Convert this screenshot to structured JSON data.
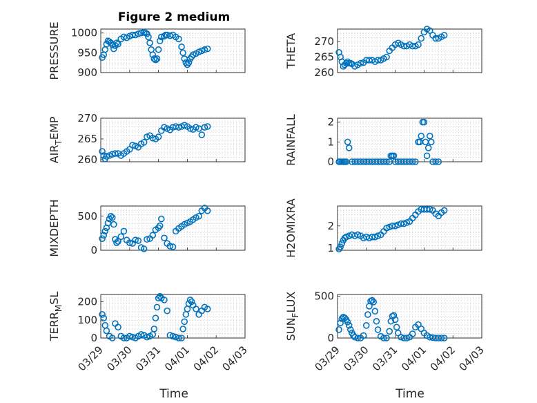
{
  "title": "Figure 2 medium",
  "x_label": "Time",
  "x_ticks": [
    "03/29",
    "03/30",
    "03/31",
    "04/01",
    "04/02",
    "04/03"
  ],
  "marker_color": "#0072BD",
  "chart_data": [
    {
      "type": "scatter",
      "ylabel": "PRESSURE",
      "yticks": [
        "900",
        "950",
        "1000"
      ],
      "ylim": [
        900,
        1010
      ],
      "xlim": [
        0,
        5
      ],
      "grid": true,
      "x": [
        0.05,
        0.1,
        0.15,
        0.2,
        0.25,
        0.3,
        0.35,
        0.4,
        0.45,
        0.5,
        0.55,
        0.6,
        0.7,
        0.8,
        0.9,
        1.0,
        1.1,
        1.2,
        1.3,
        1.4,
        1.5,
        1.55,
        1.6,
        1.65,
        1.7,
        1.75,
        1.8,
        1.85,
        1.9,
        1.95,
        2.0,
        2.05,
        2.1,
        2.2,
        2.25,
        2.3,
        2.4,
        2.5,
        2.6,
        2.7,
        2.8,
        2.85,
        2.9,
        2.95,
        3.0,
        3.05,
        3.1,
        3.15,
        3.2,
        3.3,
        3.4,
        3.5,
        3.6,
        3.7
      ],
      "y": [
        938,
        945,
        958,
        972,
        980,
        978,
        975,
        970,
        960,
        968,
        975,
        972,
        985,
        990,
        988,
        992,
        995,
        995,
        998,
        1000,
        1002,
        1000,
        998,
        990,
        975,
        958,
        945,
        935,
        932,
        935,
        958,
        980,
        990,
        992,
        995,
        995,
        993,
        995,
        990,
        985,
        965,
        950,
        935,
        925,
        920,
        925,
        935,
        940,
        945,
        948,
        952,
        955,
        958,
        960
      ]
    },
    {
      "type": "scatter",
      "ylabel": "THETA",
      "yticks": [
        "260",
        "265",
        "270"
      ],
      "ylim": [
        260,
        274
      ],
      "xlim": [
        0,
        5
      ],
      "grid": true,
      "x": [
        0.05,
        0.1,
        0.15,
        0.2,
        0.25,
        0.3,
        0.35,
        0.4,
        0.45,
        0.5,
        0.6,
        0.7,
        0.8,
        0.9,
        1.0,
        1.1,
        1.2,
        1.3,
        1.4,
        1.5,
        1.6,
        1.7,
        1.8,
        1.9,
        2.0,
        2.1,
        2.2,
        2.3,
        2.4,
        2.5,
        2.6,
        2.7,
        2.8,
        2.9,
        3.0,
        3.1,
        3.2,
        3.3,
        3.4,
        3.5,
        3.6,
        3.7
      ],
      "y": [
        266.5,
        265,
        263.5,
        262,
        262.5,
        263,
        263.5,
        263,
        263,
        262.8,
        262,
        262.5,
        263,
        263.2,
        264,
        264,
        264,
        263.5,
        264,
        264,
        264.5,
        265,
        267,
        268,
        269,
        269.5,
        269,
        268.5,
        268.5,
        269,
        268.5,
        268.5,
        269,
        271,
        273,
        274,
        273.5,
        272,
        271,
        271,
        271.5,
        272
      ]
    },
    {
      "type": "scatter",
      "ylabel": "AIR_TEMP",
      "yticks": [
        "260",
        "265",
        "270"
      ],
      "ylim": [
        259.5,
        270
      ],
      "xlim": [
        0,
        5
      ],
      "grid": true,
      "x": [
        0.05,
        0.1,
        0.15,
        0.2,
        0.3,
        0.4,
        0.5,
        0.6,
        0.7,
        0.8,
        0.9,
        1.0,
        1.1,
        1.2,
        1.3,
        1.4,
        1.5,
        1.6,
        1.7,
        1.8,
        1.9,
        2.0,
        2.1,
        2.2,
        2.3,
        2.4,
        2.5,
        2.6,
        2.7,
        2.8,
        2.9,
        3.0,
        3.1,
        3.2,
        3.3,
        3.4,
        3.5,
        3.6,
        3.7
      ],
      "y": [
        262,
        261,
        260.2,
        260.8,
        261,
        261.3,
        261.5,
        261.5,
        261,
        261.5,
        262,
        262.5,
        263.5,
        263.3,
        263,
        263.8,
        264.2,
        265.5,
        265.8,
        265.2,
        265,
        265.5,
        267,
        267.8,
        267.5,
        267.2,
        267.8,
        268,
        267.8,
        268,
        268.3,
        268,
        267.5,
        267.3,
        267.8,
        267.5,
        266,
        267.8,
        268
      ]
    },
    {
      "type": "scatter",
      "ylabel": "RAINFALL",
      "yticks": [
        "0",
        "1",
        "2"
      ],
      "ylim": [
        0,
        2.2
      ],
      "xlim": [
        0,
        5
      ],
      "grid": true,
      "x": [
        0.05,
        0.1,
        0.15,
        0.2,
        0.25,
        0.3,
        0.35,
        0.4,
        0.5,
        0.6,
        0.7,
        0.8,
        0.9,
        1.0,
        1.1,
        1.2,
        1.3,
        1.4,
        1.5,
        1.6,
        1.7,
        1.8,
        1.85,
        1.9,
        1.95,
        2.0,
        2.1,
        2.2,
        2.3,
        2.4,
        2.5,
        2.6,
        2.7,
        2.8,
        2.85,
        2.9,
        2.95,
        3.0,
        3.05,
        3.1,
        3.15,
        3.2,
        3.25,
        3.3,
        3.4,
        3.5
      ],
      "y": [
        0,
        0,
        0,
        0,
        0,
        0,
        1,
        0.7,
        0,
        0,
        0,
        0,
        0,
        0,
        0,
        0,
        0,
        0,
        0,
        0,
        0,
        0,
        0.3,
        0.3,
        0.3,
        0,
        0,
        0,
        0,
        0,
        0,
        0,
        0,
        1,
        1,
        1.3,
        2,
        2,
        1,
        0.3,
        0.7,
        1.3,
        1,
        0,
        0,
        0
      ]
    },
    {
      "type": "scatter",
      "ylabel": "MIXDEPTH",
      "yticks": [
        "0",
        "500"
      ],
      "ylim": [
        0,
        650
      ],
      "xlim": [
        0,
        5
      ],
      "grid": true,
      "x": [
        0.05,
        0.1,
        0.15,
        0.2,
        0.25,
        0.3,
        0.35,
        0.4,
        0.45,
        0.5,
        0.55,
        0.6,
        0.7,
        0.8,
        0.9,
        1.0,
        1.1,
        1.2,
        1.3,
        1.4,
        1.5,
        1.6,
        1.7,
        1.8,
        1.9,
        2.0,
        2.05,
        2.1,
        2.2,
        2.3,
        2.4,
        2.5,
        2.6,
        2.7,
        2.8,
        2.9,
        3.0,
        3.1,
        3.2,
        3.3,
        3.4,
        3.5,
        3.6,
        3.7
      ],
      "y": [
        170,
        220,
        280,
        330,
        400,
        460,
        500,
        480,
        380,
        160,
        110,
        130,
        200,
        280,
        150,
        110,
        100,
        150,
        140,
        40,
        20,
        160,
        170,
        220,
        300,
        330,
        360,
        460,
        180,
        100,
        60,
        50,
        280,
        320,
        350,
        380,
        400,
        420,
        450,
        480,
        500,
        580,
        620,
        580
      ]
    },
    {
      "type": "scatter",
      "ylabel": "H2OMIXRA",
      "yticks": [
        "1",
        "2"
      ],
      "ylim": [
        0.9,
        2.9
      ],
      "xlim": [
        0,
        5
      ],
      "grid": true,
      "x": [
        0.05,
        0.1,
        0.15,
        0.2,
        0.25,
        0.3,
        0.4,
        0.5,
        0.6,
        0.7,
        0.8,
        0.9,
        1.0,
        1.1,
        1.2,
        1.3,
        1.4,
        1.5,
        1.6,
        1.7,
        1.8,
        1.9,
        2.0,
        2.1,
        2.2,
        2.3,
        2.4,
        2.5,
        2.6,
        2.7,
        2.8,
        2.9,
        3.0,
        3.1,
        3.2,
        3.3,
        3.4,
        3.5,
        3.6,
        3.7
      ],
      "y": [
        0.95,
        1.05,
        1.2,
        1.35,
        1.45,
        1.5,
        1.55,
        1.6,
        1.55,
        1.6,
        1.55,
        1.45,
        1.5,
        1.45,
        1.5,
        1.5,
        1.55,
        1.6,
        1.75,
        1.9,
        1.95,
        2.0,
        2.0,
        2.05,
        2.1,
        2.1,
        2.15,
        2.2,
        2.35,
        2.5,
        2.65,
        2.75,
        2.75,
        2.75,
        2.75,
        2.7,
        2.55,
        2.45,
        2.6,
        2.7
      ]
    },
    {
      "type": "scatter",
      "ylabel": "TERR_MSL",
      "yticks": [
        "0",
        "100",
        "200"
      ],
      "ylim": [
        0,
        240
      ],
      "xlim": [
        0,
        5
      ],
      "grid": true,
      "x": [
        0.05,
        0.1,
        0.15,
        0.2,
        0.3,
        0.4,
        0.5,
        0.6,
        0.7,
        0.8,
        0.9,
        1.0,
        1.1,
        1.2,
        1.3,
        1.4,
        1.5,
        1.6,
        1.7,
        1.8,
        1.85,
        1.9,
        1.95,
        2.0,
        2.05,
        2.1,
        2.2,
        2.3,
        2.4,
        2.5,
        2.6,
        2.7,
        2.8,
        2.85,
        2.9,
        2.95,
        3.0,
        3.05,
        3.1,
        3.15,
        3.2,
        3.3,
        3.4,
        3.5,
        3.6,
        3.7
      ],
      "y": [
        130,
        110,
        70,
        40,
        10,
        0,
        80,
        60,
        10,
        0,
        0,
        10,
        5,
        0,
        10,
        20,
        15,
        5,
        10,
        20,
        50,
        110,
        170,
        220,
        230,
        220,
        210,
        150,
        15,
        10,
        5,
        0,
        0,
        50,
        90,
        130,
        160,
        190,
        210,
        200,
        180,
        160,
        130,
        150,
        170,
        160
      ]
    },
    {
      "type": "scatter",
      "ylabel": "SUN_FLUX",
      "yticks": [
        "0",
        "500"
      ],
      "ylim": [
        0,
        520
      ],
      "xlim": [
        0,
        5
      ],
      "grid": true,
      "x": [
        0.05,
        0.1,
        0.15,
        0.2,
        0.25,
        0.3,
        0.35,
        0.4,
        0.45,
        0.5,
        0.55,
        0.6,
        0.7,
        0.8,
        0.9,
        1.0,
        1.05,
        1.1,
        1.15,
        1.2,
        1.25,
        1.3,
        1.35,
        1.4,
        1.5,
        1.6,
        1.7,
        1.8,
        1.85,
        1.9,
        1.95,
        2.0,
        2.05,
        2.1,
        2.2,
        2.3,
        2.4,
        2.5,
        2.6,
        2.7,
        2.8,
        2.9,
        3.0,
        3.1,
        3.2,
        3.3,
        3.4,
        3.5,
        3.6,
        3.7
      ],
      "y": [
        100,
        180,
        230,
        250,
        240,
        220,
        190,
        150,
        100,
        60,
        30,
        10,
        0,
        0,
        30,
        150,
        280,
        380,
        440,
        450,
        430,
        320,
        200,
        100,
        20,
        0,
        0,
        80,
        200,
        260,
        270,
        220,
        130,
        60,
        10,
        0,
        0,
        10,
        50,
        130,
        160,
        110,
        60,
        30,
        10,
        5,
        0,
        0,
        0,
        0
      ]
    }
  ]
}
